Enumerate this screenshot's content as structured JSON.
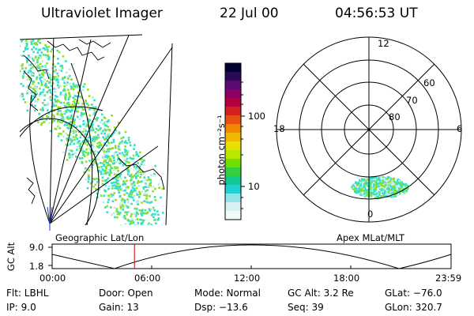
{
  "header": {
    "instrument": "Ultraviolet Imager",
    "date": "22 Jul 00",
    "time": "04:56:53 UT"
  },
  "left_panel": {
    "caption": "Geographic Lat/Lon"
  },
  "right_panel": {
    "caption": "Apex MLat/MLT",
    "mlt_labels": {
      "top": "12",
      "bottom": "0",
      "left": "18",
      "right": "6"
    },
    "lat_labels": [
      "60",
      "70",
      "80"
    ]
  },
  "colorbar": {
    "label": "photon cm⁻²s⁻¹",
    "ticks": [
      "100",
      "10"
    ],
    "colors": [
      "#000033",
      "#2a0a55",
      "#5a0a70",
      "#8a0066",
      "#b00040",
      "#d42020",
      "#e85010",
      "#f08800",
      "#f0b800",
      "#e8e000",
      "#b8e800",
      "#70e000",
      "#30d040",
      "#10c890",
      "#20d0d0",
      "#90e4e8",
      "#d8f2f4",
      "#f4fafa"
    ]
  },
  "altitude_plot": {
    "ylabel": "GC Alt",
    "y_ticks": [
      "9.0",
      "1.8"
    ],
    "x_ticks": [
      "00:00",
      "06:00",
      "12:00",
      "18:00",
      "23:59"
    ],
    "current_time_hours": 4.95
  },
  "info": {
    "flt": "Flt: LBHL",
    "ip": "IP:  9.0",
    "door": "Door: Open",
    "gain": "Gain: 13",
    "mode": "Mode: Normal",
    "dsp": "Dsp:  −13.6",
    "gcalt": "GC Alt: 3.2 Re",
    "seq": "Seq: 39",
    "glat": "GLat: −76.0",
    "glon": "GLon: 320.7"
  },
  "colors": {
    "cyan": "#2fe0c8",
    "green": "#8fe020",
    "lightcyan": "#b8ecec",
    "marker": "#cc0000"
  }
}
